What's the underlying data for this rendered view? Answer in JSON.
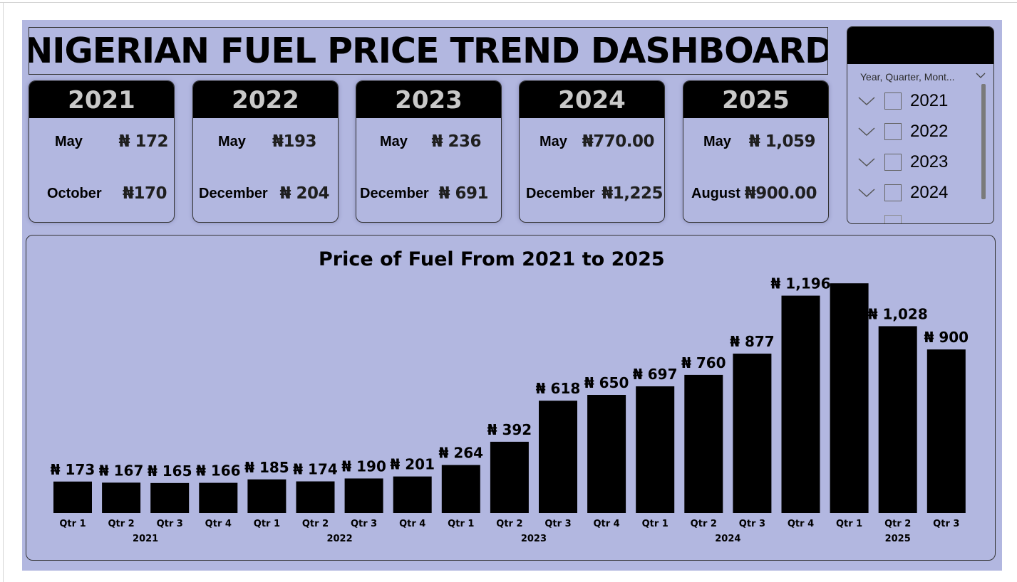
{
  "title": "NIGERIAN FUEL PRICE TREND DASHBOARD",
  "cards": [
    {
      "year": "2021",
      "row1_label": "May",
      "row1_value": "₦ 172",
      "row2_label": "October",
      "row2_value": "₦170"
    },
    {
      "year": "2022",
      "row1_label": "May",
      "row1_value": "₦193",
      "row2_label": "December",
      "row2_value": "₦ 204"
    },
    {
      "year": "2023",
      "row1_label": "May",
      "row1_value": "₦ 236",
      "row2_label": "December",
      "row2_value": "₦ 691"
    },
    {
      "year": "2024",
      "row1_label": "May",
      "row1_value": "₦770.00",
      "row2_label": "December",
      "row2_value": "₦1,225"
    },
    {
      "year": "2025",
      "row1_label": "May",
      "row1_value": "₦ 1,059",
      "row2_label": "August",
      "row2_value": "₦900.00"
    }
  ],
  "slicer": {
    "title": "Year, Quarter, Mont...",
    "items": [
      "2021",
      "2022",
      "2023",
      "2024"
    ]
  },
  "colors": {
    "background": "#b2b7e0",
    "bar": "#000000",
    "card_header": "#000000",
    "card_header_text": "#c9c9c9"
  },
  "chart_data": {
    "type": "bar",
    "title": "Price of Fuel From 2021 to 2025",
    "groups": [
      {
        "year": "2021",
        "quarters": [
          "Qtr 1",
          "Qtr 2",
          "Qtr 3",
          "Qtr 4"
        ]
      },
      {
        "year": "2022",
        "quarters": [
          "Qtr 1",
          "Qtr 2",
          "Qtr 3",
          "Qtr 4"
        ]
      },
      {
        "year": "2023",
        "quarters": [
          "Qtr 1",
          "Qtr 2",
          "Qtr 3",
          "Qtr 4"
        ]
      },
      {
        "year": "2024",
        "quarters": [
          "Qtr 1",
          "Qtr 2",
          "Qtr 3",
          "Qtr 4"
        ]
      },
      {
        "year": "2025",
        "quarters": [
          "Qtr 1",
          "Qtr 2",
          "Qtr 3"
        ]
      }
    ],
    "values": [
      173,
      167,
      165,
      166,
      185,
      174,
      190,
      201,
      264,
      392,
      618,
      650,
      697,
      760,
      877,
      1196,
      1264,
      1028,
      900
    ],
    "data_labels": [
      "₦ 173",
      "₦ 167",
      "₦ 165",
      "₦ 166",
      "₦ 185",
      "₦ 174",
      "₦ 190",
      "₦ 201",
      "₦ 264",
      "₦ 392",
      "₦ 618",
      "₦ 650",
      "₦ 697",
      "₦ 760",
      "₦ 877",
      "₦ 1,196",
      "",
      "₦ 1,028",
      "₦ 900"
    ],
    "ylim": [
      0,
      1300
    ],
    "grid": false,
    "legend": "none"
  }
}
